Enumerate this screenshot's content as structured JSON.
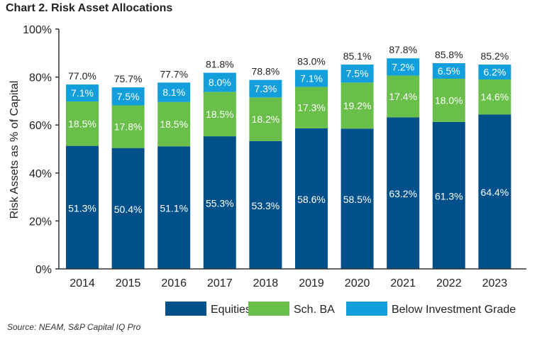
{
  "title": "Chart 2. Risk Asset Allocations",
  "source": "Source: NEAM, S&P Capital IQ Pro",
  "colors": {
    "equities": "#02508a",
    "sch_ba": "#6abf4b",
    "below_ig": "#129fdb"
  },
  "chart_data": {
    "type": "bar",
    "stacked": true,
    "title": "Chart 2. Risk Asset Allocations",
    "xlabel": "",
    "ylabel": "Risk Assets as % of Capital",
    "ylim": [
      0,
      100
    ],
    "yticks": [
      "0%",
      "20%",
      "40%",
      "60%",
      "80%",
      "100%"
    ],
    "categories": [
      "2014",
      "2015",
      "2016",
      "2017",
      "2018",
      "2019",
      "2020",
      "2021",
      "2022",
      "2023"
    ],
    "series": [
      {
        "name": "Equities",
        "values": [
          51.3,
          50.4,
          51.1,
          55.3,
          53.3,
          58.6,
          58.5,
          63.2,
          61.3,
          64.4
        ],
        "labels": [
          "51.3%",
          "50.4%",
          "51.1%",
          "55.3%",
          "53.3%",
          "58.6%",
          "58.5%",
          "63.2%",
          "61.3%",
          "64.4%"
        ]
      },
      {
        "name": "Sch. BA",
        "values": [
          18.5,
          17.8,
          18.5,
          18.5,
          18.2,
          17.3,
          19.2,
          17.4,
          18.0,
          14.6
        ],
        "labels": [
          "18.5%",
          "17.8%",
          "18.5%",
          "18.5%",
          "18.2%",
          "17.3%",
          "19.2%",
          "17.4%",
          "18.0%",
          "14.6%"
        ]
      },
      {
        "name": "Below Investment Grade",
        "values": [
          7.1,
          7.5,
          8.1,
          8.0,
          7.3,
          7.1,
          7.5,
          7.2,
          6.5,
          6.2
        ],
        "labels": [
          "7.1%",
          "7.5%",
          "8.1%",
          "8.0%",
          "7.3%",
          "7.1%",
          "7.5%",
          "7.2%",
          "6.5%",
          "6.2%"
        ]
      }
    ],
    "totals": [
      77.0,
      75.7,
      77.7,
      81.8,
      78.8,
      83.0,
      85.1,
      87.8,
      85.8,
      85.2
    ],
    "total_labels": [
      "77.0%",
      "75.7%",
      "77.7%",
      "81.8%",
      "78.8%",
      "83.0%",
      "85.1%",
      "87.8%",
      "85.8%",
      "85.2%"
    ],
    "legend": [
      "Equities",
      "Sch. BA",
      "Below Investment Grade"
    ],
    "legend_position": "bottom-right"
  }
}
